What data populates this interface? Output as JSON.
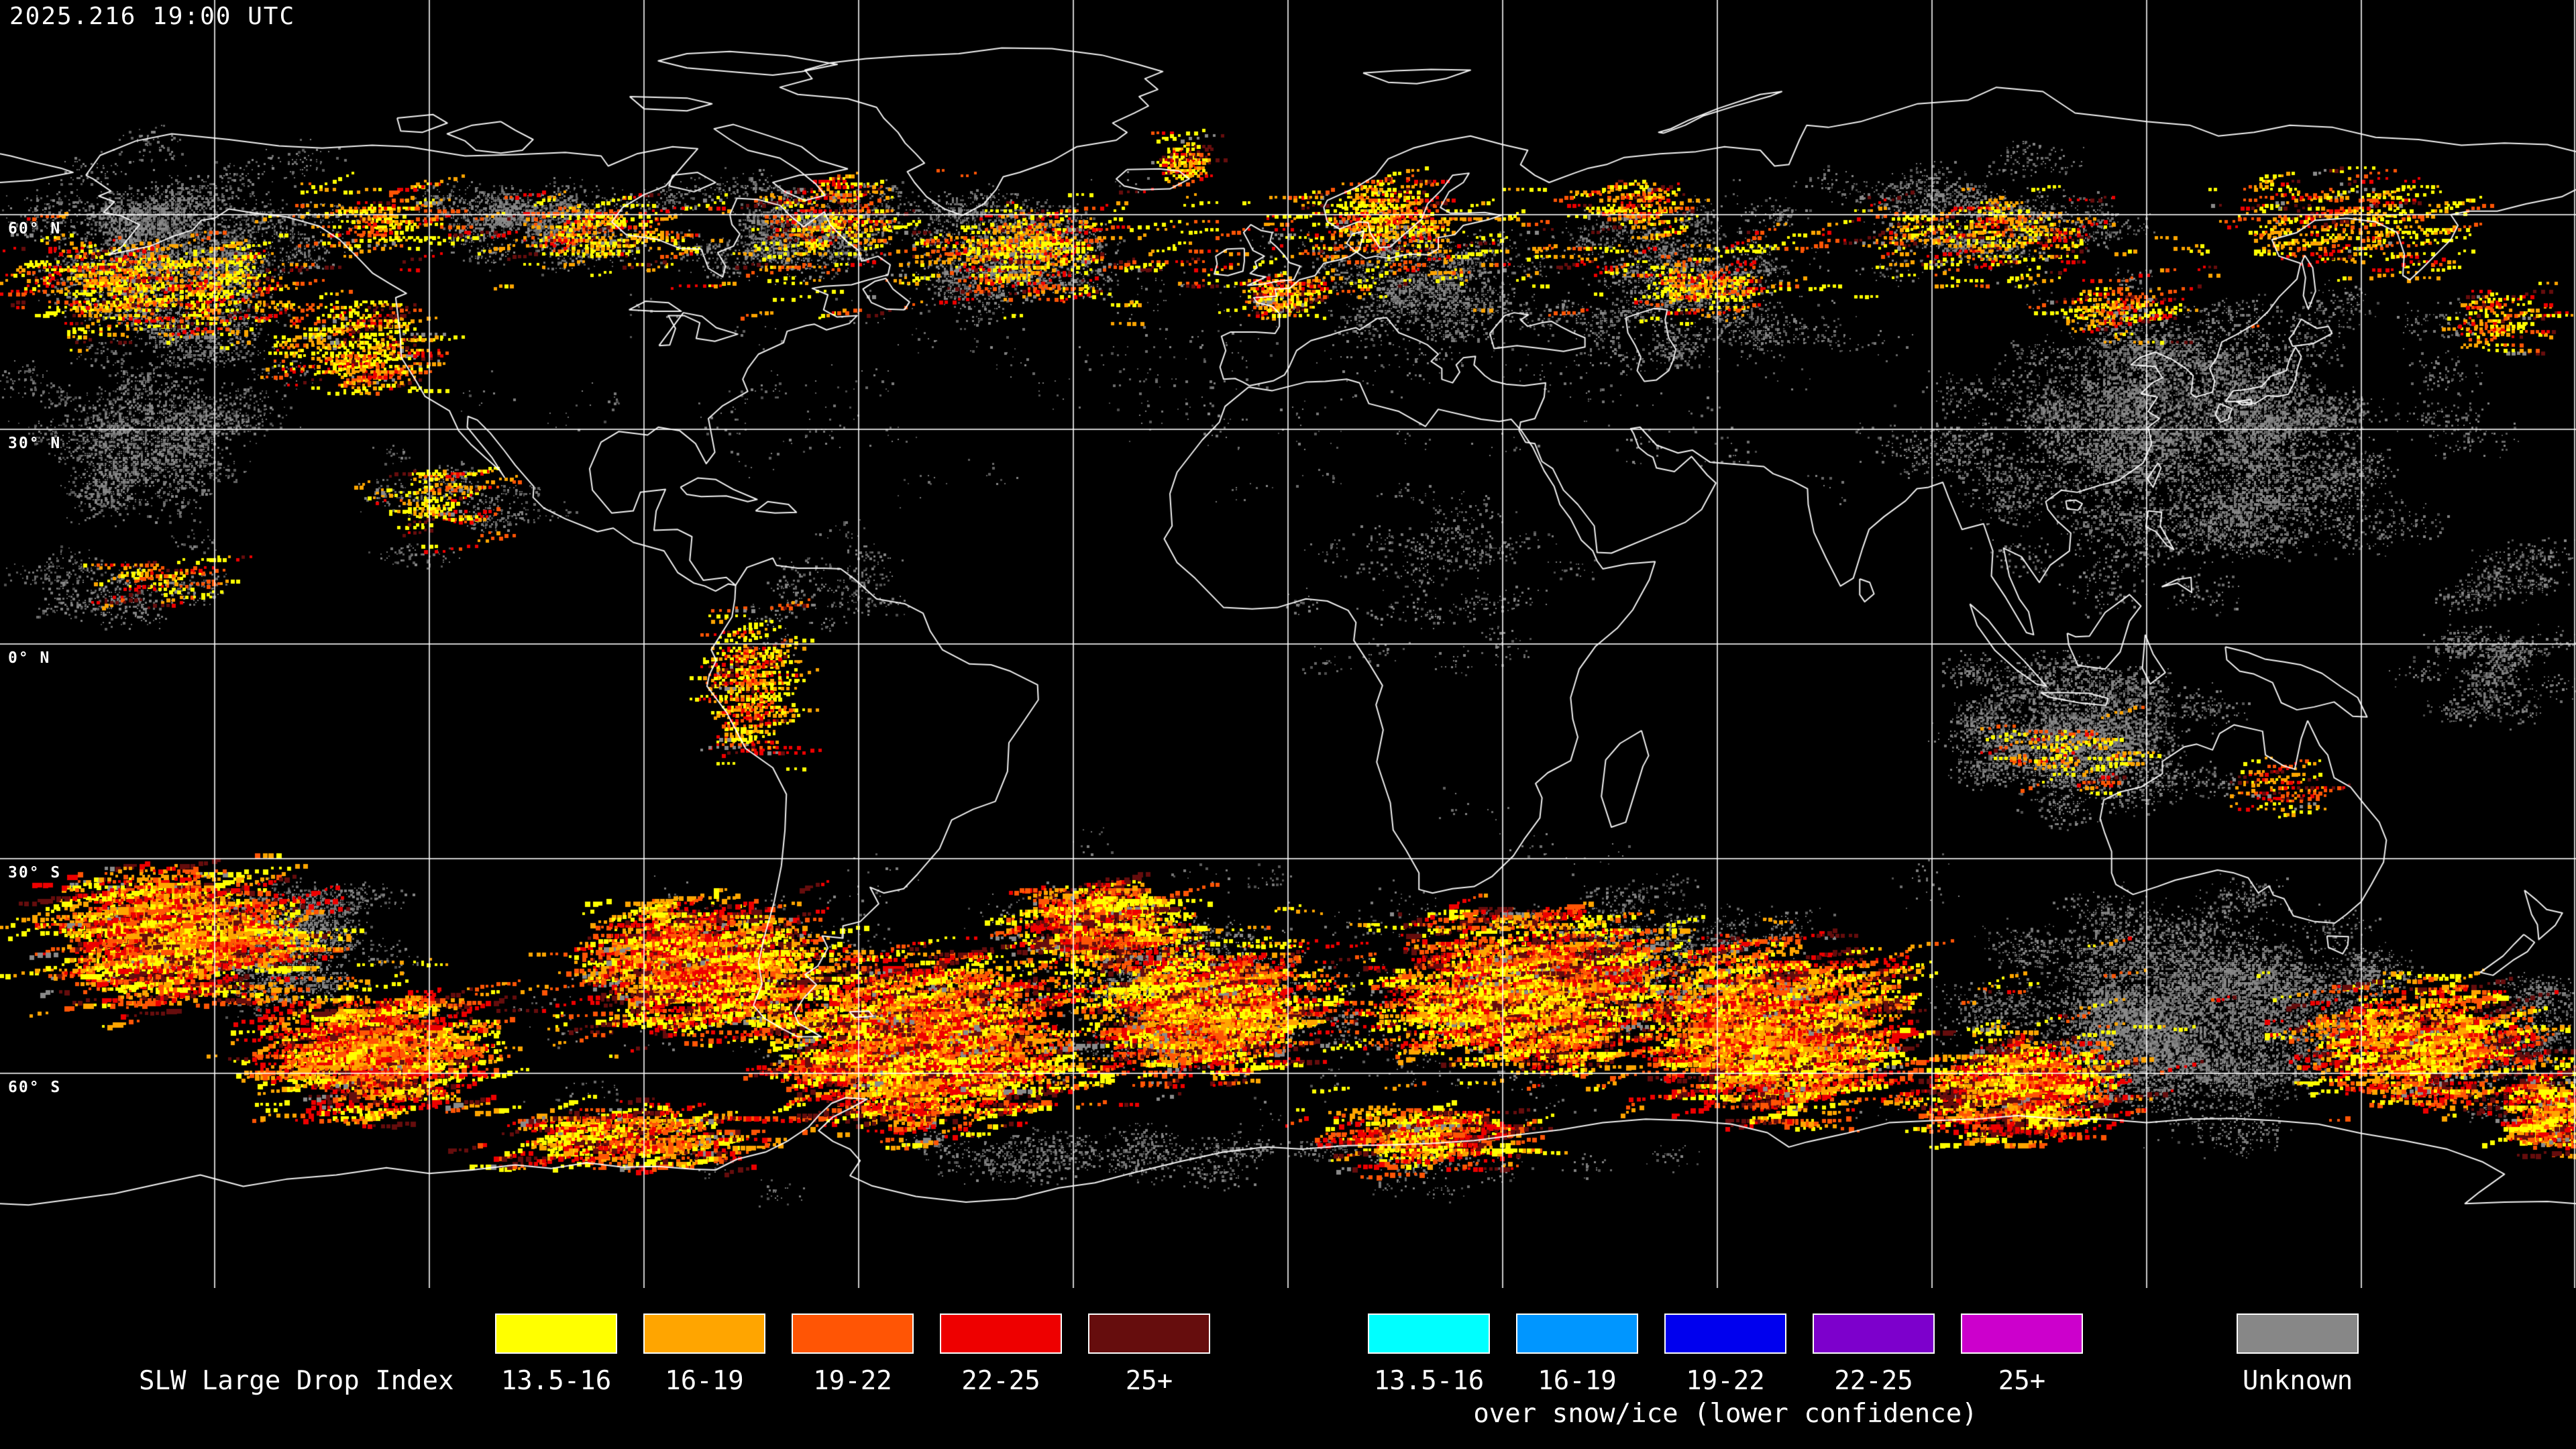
{
  "map": {
    "timestamp": "2025.216 19:00 UTC",
    "background": "#000000",
    "grid_color": "#ffffff",
    "coastline_color": "#ffffff",
    "speckle_gray": "#8a8a8a",
    "latitude_labels": [
      {
        "text": "60° N",
        "lat": 60
      },
      {
        "text": "30° N",
        "lat": 30
      },
      {
        "text": "0° N",
        "lat": 0
      },
      {
        "text": "30° S",
        "lat": -30
      },
      {
        "text": "60° S",
        "lat": -60
      }
    ],
    "grid_longitudes_deg": [
      -150,
      -120,
      -90,
      -60,
      -30,
      0,
      30,
      60,
      90,
      120,
      150,
      180
    ]
  },
  "legend": {
    "title": "SLW Large Drop Index",
    "groups": [
      {
        "name": "standard",
        "items": [
          {
            "label": "13.5-16",
            "color": "#ffff00"
          },
          {
            "label": "16-19",
            "color": "#ffa500"
          },
          {
            "label": "19-22",
            "color": "#ff5505"
          },
          {
            "label": "22-25",
            "color": "#ee0000"
          },
          {
            "label": "25+",
            "color": "#660d0d"
          }
        ]
      },
      {
        "name": "snow-ice",
        "note": "over snow/ice (lower confidence)",
        "items": [
          {
            "label": "13.5-16",
            "color": "#00ffff"
          },
          {
            "label": "16-19",
            "color": "#0096ff"
          },
          {
            "label": "19-22",
            "color": "#0000ee"
          },
          {
            "label": "22-25",
            "color": "#7d00cc"
          },
          {
            "label": "25+",
            "color": "#cc00cc"
          }
        ]
      },
      {
        "name": "unknown",
        "items": [
          {
            "label": "Unknown",
            "color": "#878787"
          }
        ]
      }
    ]
  }
}
